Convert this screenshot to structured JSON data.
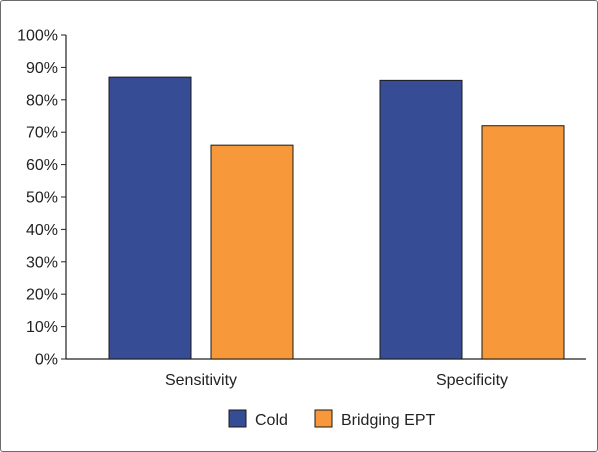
{
  "chart_data": {
    "type": "bar",
    "title": "",
    "xlabel": "",
    "ylabel": "",
    "categories": [
      "Sensitivity",
      "Specificity"
    ],
    "series": [
      {
        "name": "Cold",
        "values": [
          87,
          86
        ],
        "color": "#364c94"
      },
      {
        "name": "Bridging EPT",
        "values": [
          66,
          72
        ],
        "color": "#f7993a"
      }
    ],
    "ylim": [
      0,
      100
    ],
    "yticks": [
      0,
      10,
      20,
      30,
      40,
      50,
      60,
      70,
      80,
      90,
      100
    ],
    "ytick_labels": [
      "0%",
      "10%",
      "20%",
      "30%",
      "40%",
      "50%",
      "60%",
      "70%",
      "80%",
      "90%",
      "100%"
    ],
    "grid": false,
    "legend_position": "bottom-center"
  }
}
